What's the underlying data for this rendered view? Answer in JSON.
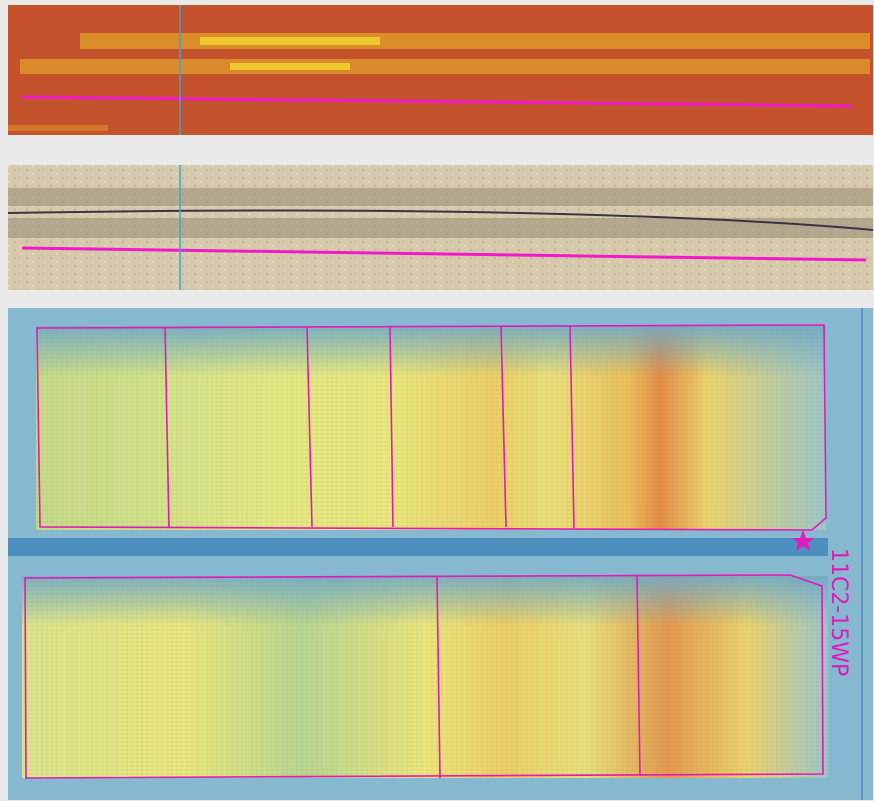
{
  "map_label": "11C2-15WP"
}
